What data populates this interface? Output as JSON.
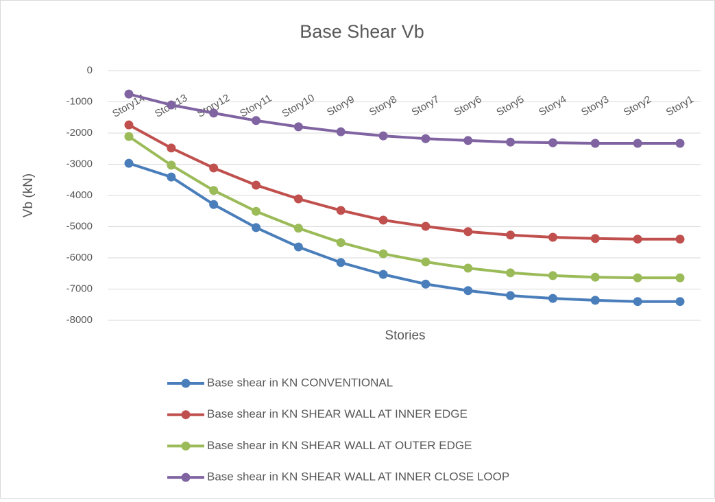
{
  "chart_data": {
    "type": "line",
    "title": "Base Shear Vb",
    "x_label": "Stories",
    "y_label": "Vb (kN)",
    "categories": [
      "Story14",
      "Story13",
      "Story12",
      "Story11",
      "Story10",
      "Story9",
      "Story8",
      "Story7",
      "Story6",
      "Story5",
      "Story4",
      "Story3",
      "Story2",
      "Story1"
    ],
    "series": [
      {
        "name": "Base shear in KN CONVENTIONAL",
        "color": "#4a7ebb",
        "values": [
          -2970,
          -3410,
          -4290,
          -5030,
          -5650,
          -6150,
          -6530,
          -6840,
          -7050,
          -7210,
          -7300,
          -7360,
          -7400,
          -7400
        ]
      },
      {
        "name": "Base shear in KN SHEAR WALL AT INNER EDGE",
        "color": "#c0504d",
        "values": [
          -1740,
          -2480,
          -3120,
          -3670,
          -4110,
          -4480,
          -4790,
          -4990,
          -5160,
          -5270,
          -5340,
          -5380,
          -5400,
          -5400
        ]
      },
      {
        "name": "Base shear in KN SHEAR WALL AT OUTER EDGE",
        "color": "#9bbb59",
        "values": [
          -2110,
          -3030,
          -3840,
          -4510,
          -5050,
          -5510,
          -5870,
          -6130,
          -6330,
          -6480,
          -6570,
          -6620,
          -6640,
          -6640
        ]
      },
      {
        "name": "Base shear in KN SHEAR WALL AT INNER CLOSE LOOP",
        "color": "#8064a2",
        "values": [
          -750,
          -1100,
          -1360,
          -1600,
          -1800,
          -1960,
          -2090,
          -2180,
          -2240,
          -2290,
          -2310,
          -2330,
          -2330,
          -2330
        ]
      }
    ],
    "ylim": [
      -8000,
      0
    ],
    "yticks": [
      0,
      -1000,
      -2000,
      -3000,
      -4000,
      -5000,
      -6000,
      -7000,
      -8000
    ],
    "grid": true,
    "legend": "bottom"
  }
}
